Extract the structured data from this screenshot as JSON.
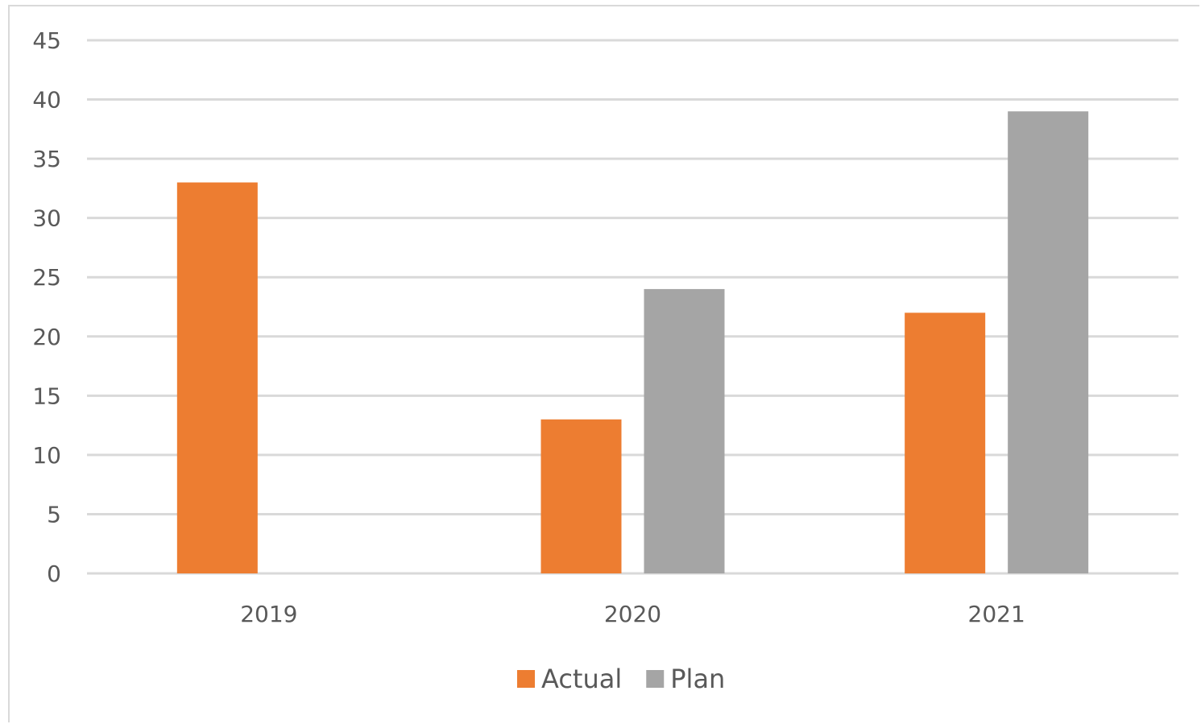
{
  "chart_data": {
    "type": "bar",
    "title": "",
    "xlabel": "",
    "ylabel": "",
    "categories": [
      "2019",
      "2020",
      "2021"
    ],
    "series": [
      {
        "name": "Actual",
        "color": "#ed7d31",
        "values": [
          33,
          13,
          22
        ]
      },
      {
        "name": "Plan",
        "color": "#a5a5a5",
        "values": [
          null,
          24,
          39
        ]
      }
    ],
    "ylim": [
      0,
      45
    ],
    "yticks": [
      0,
      5,
      10,
      15,
      20,
      25,
      30,
      35,
      40,
      45
    ],
    "grid": true,
    "gridline_color": "#d9d9d9",
    "legend_position": "bottom"
  }
}
